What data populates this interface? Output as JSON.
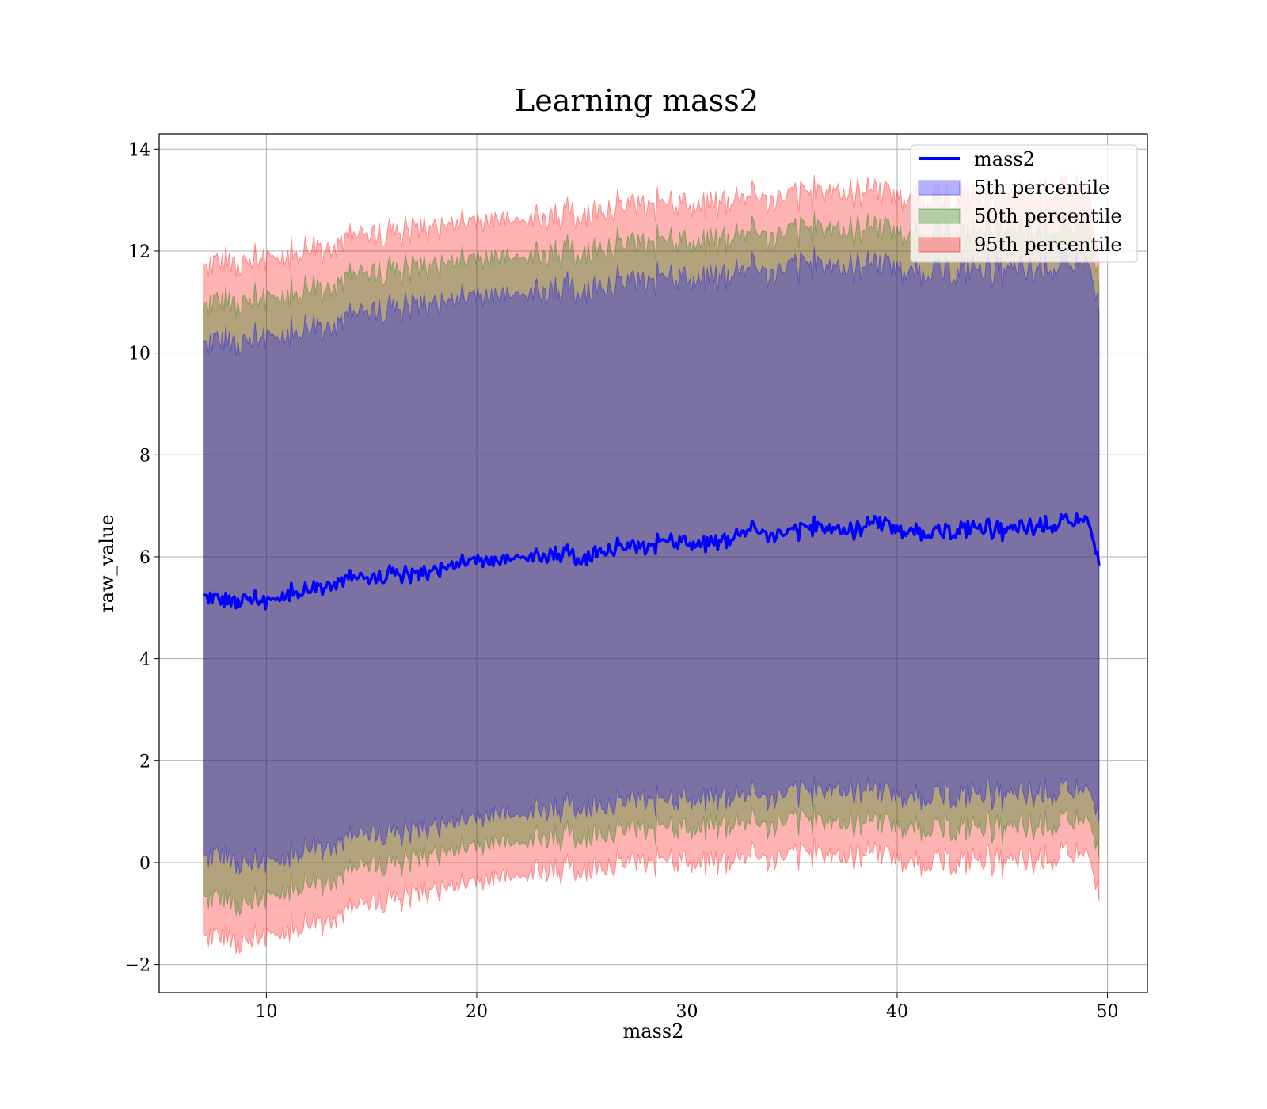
{
  "chart_data": {
    "type": "area",
    "title": "Learning mass2",
    "xlabel": "mass2",
    "ylabel": "raw_value",
    "xlim": [
      4.9,
      51.9
    ],
    "ylim": [
      -2.55,
      14.3
    ],
    "xticks": [
      10,
      20,
      30,
      40,
      50
    ],
    "yticks": [
      -2,
      0,
      2,
      4,
      6,
      8,
      10,
      12,
      14
    ],
    "ytick_labels": [
      "−2",
      "0",
      "2",
      "4",
      "6",
      "8",
      "10",
      "12",
      "14"
    ],
    "grid": true,
    "legend_position": "top-right",
    "x": [
      7,
      8,
      9,
      10,
      11,
      12,
      13,
      14,
      15,
      16,
      17,
      18,
      19,
      20,
      21,
      22,
      23,
      24,
      25,
      26,
      27,
      28,
      29,
      30,
      31,
      32,
      33,
      34,
      35,
      36,
      37,
      38,
      39,
      40,
      41,
      42,
      43,
      44,
      45,
      46,
      47,
      48,
      49,
      49.6
    ],
    "series": [
      {
        "name": "mass2",
        "kind": "line",
        "color": "#0000ff",
        "values": [
          5.3,
          5.1,
          5.2,
          5.1,
          5.3,
          5.35,
          5.5,
          5.6,
          5.55,
          5.7,
          5.65,
          5.75,
          5.85,
          5.95,
          5.9,
          6.05,
          6.0,
          6.1,
          5.95,
          6.15,
          6.2,
          6.15,
          6.35,
          6.3,
          6.25,
          6.35,
          6.55,
          6.45,
          6.45,
          6.6,
          6.55,
          6.5,
          6.75,
          6.55,
          6.5,
          6.45,
          6.55,
          6.6,
          6.5,
          6.55,
          6.6,
          6.65,
          6.75,
          5.9
        ]
      },
      {
        "name": "5th percentile",
        "kind": "band",
        "color": "#0000ff",
        "lower": [
          0.2,
          0.1,
          0.0,
          0.0,
          0.15,
          0.3,
          0.4,
          0.5,
          0.55,
          0.6,
          0.65,
          0.75,
          0.8,
          0.9,
          0.95,
          1.0,
          1.05,
          1.1,
          1.1,
          1.15,
          1.2,
          1.2,
          1.25,
          1.3,
          1.25,
          1.3,
          1.35,
          1.3,
          1.35,
          1.4,
          1.45,
          1.4,
          1.5,
          1.35,
          1.3,
          1.3,
          1.35,
          1.4,
          1.3,
          1.3,
          1.35,
          1.35,
          1.45,
          0.9
        ],
        "upper": [
          10.3,
          10.2,
          10.25,
          10.3,
          10.4,
          10.5,
          10.6,
          10.75,
          10.8,
          10.9,
          10.95,
          11.0,
          11.05,
          11.15,
          11.1,
          11.25,
          11.2,
          11.3,
          11.2,
          11.35,
          11.4,
          11.35,
          11.55,
          11.5,
          11.45,
          11.55,
          11.7,
          11.6,
          11.65,
          11.75,
          11.7,
          11.65,
          11.85,
          11.7,
          11.6,
          11.6,
          11.65,
          11.7,
          11.6,
          11.6,
          11.65,
          11.7,
          11.8,
          10.9
        ]
      },
      {
        "name": "50th percentile",
        "kind": "band",
        "color": "#008000",
        "lower": [
          -0.6,
          -0.75,
          -0.8,
          -0.7,
          -0.5,
          -0.4,
          -0.3,
          -0.15,
          -0.05,
          0.0,
          0.1,
          0.2,
          0.25,
          0.35,
          0.4,
          0.45,
          0.5,
          0.55,
          0.5,
          0.6,
          0.65,
          0.6,
          0.75,
          0.7,
          0.7,
          0.75,
          0.8,
          0.75,
          0.8,
          0.85,
          0.8,
          0.75,
          0.9,
          0.75,
          0.7,
          0.65,
          0.7,
          0.75,
          0.65,
          0.65,
          0.7,
          0.75,
          0.85,
          0.2
        ]
      },
      {
        "name": "95th percentile",
        "kind": "band",
        "color": "#ff0000",
        "lower": [
          -1.35,
          -1.5,
          -1.55,
          -1.45,
          -1.3,
          -1.2,
          -1.05,
          -0.9,
          -0.8,
          -0.7,
          -0.6,
          -0.5,
          -0.45,
          -0.35,
          -0.3,
          -0.2,
          -0.15,
          -0.1,
          -0.15,
          -0.05,
          0.0,
          -0.05,
          0.1,
          0.05,
          0.0,
          0.05,
          0.15,
          0.1,
          0.1,
          0.2,
          0.15,
          0.1,
          0.3,
          0.1,
          0.0,
          0.0,
          0.05,
          0.1,
          0.0,
          0.0,
          0.05,
          0.1,
          0.2,
          -0.65
        ],
        "upper": [
          11.8,
          11.75,
          11.8,
          11.85,
          11.95,
          12.05,
          12.15,
          12.3,
          12.3,
          12.4,
          12.45,
          12.5,
          12.55,
          12.6,
          12.6,
          12.7,
          12.65,
          12.75,
          12.7,
          12.85,
          12.9,
          12.85,
          13.0,
          12.95,
          12.9,
          13.0,
          13.1,
          13.05,
          13.05,
          13.15,
          13.2,
          13.1,
          13.3,
          13.1,
          13.05,
          13.05,
          13.1,
          13.15,
          13.05,
          13.05,
          13.1,
          13.15,
          13.3,
          11.9
        ]
      }
    ]
  }
}
